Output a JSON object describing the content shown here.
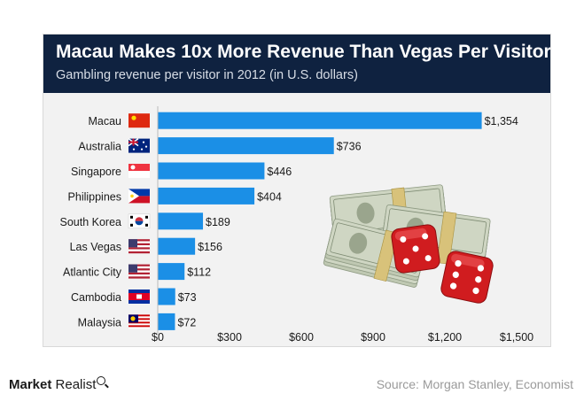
{
  "chart_data": {
    "type": "bar",
    "orientation": "horizontal",
    "title": "Macau Makes 10x More Revenue Than Vegas Per Visitor",
    "subtitle": "Gambling revenue per visitor in 2012 (in U.S. dollars)",
    "categories": [
      "Macau",
      "Australia",
      "Singapore",
      "Philippines",
      "South Korea",
      "Las Vegas",
      "Atlantic City",
      "Cambodia",
      "Malaysia"
    ],
    "values": [
      1354,
      736,
      446,
      404,
      189,
      156,
      112,
      73,
      72
    ],
    "data_labels": [
      "$1,354",
      "$736",
      "$446",
      "$404",
      "$189",
      "$156",
      "$112",
      "$73",
      "$72"
    ],
    "xlim": [
      0,
      1500
    ],
    "x_ticks": [
      0,
      300,
      600,
      900,
      1200,
      1500
    ],
    "x_tick_labels": [
      "$0",
      "$300",
      "$600",
      "$900",
      "$1,200",
      "$1,500"
    ],
    "xlabel": "",
    "ylabel": "",
    "grid": false,
    "legend": "none",
    "bar_color": "#1b8fe6",
    "flags": [
      "china-flag-icon",
      "australia-flag-icon",
      "singapore-flag-icon",
      "philippines-flag-icon",
      "south-korea-flag-icon",
      "usa-flag-icon",
      "usa-flag-icon",
      "cambodia-flag-icon",
      "malaysia-flag-icon"
    ],
    "illustration": "money-stack-and-dice"
  },
  "footer": {
    "brand_bold": "Market",
    "brand_rest": "Realist",
    "source": "Source: Morgan Stanley, Economist"
  },
  "colors": {
    "header_bg": "#0f2240",
    "card_bg": "#f2f2f2",
    "bar": "#1b8fe6"
  }
}
